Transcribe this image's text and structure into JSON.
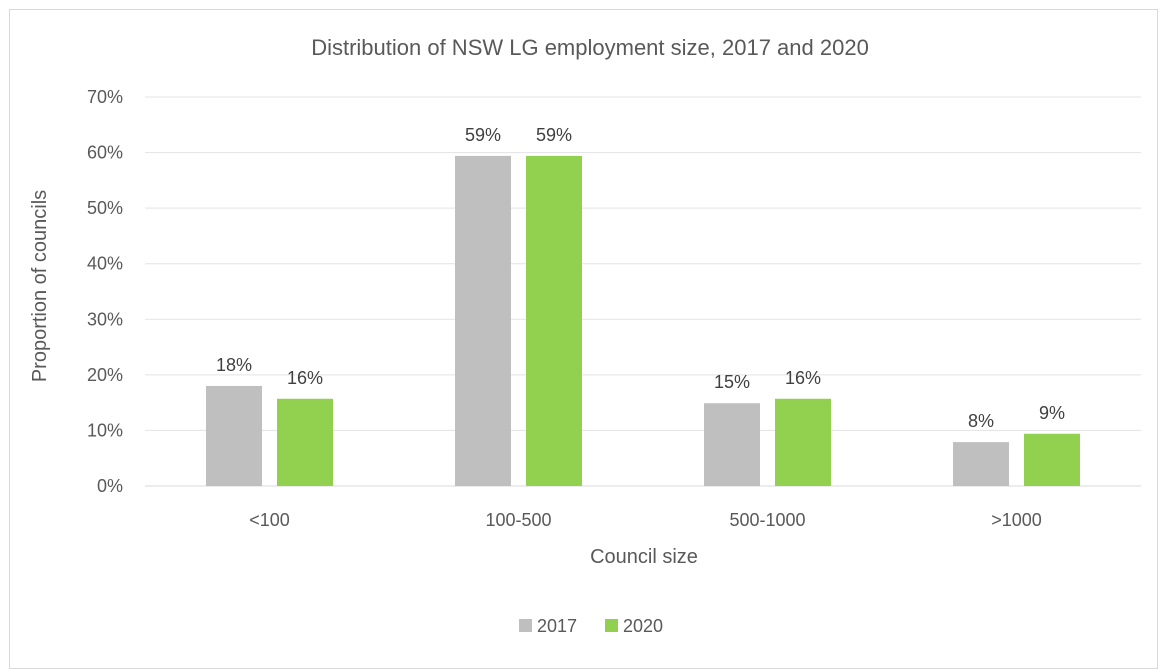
{
  "chart_data": {
    "type": "bar",
    "title": "Distribution of NSW LG employment size, 2017 and 2020",
    "xlabel": "Council size",
    "ylabel": "Proportion of councils",
    "categories": [
      "<100",
      "100-500",
      "500-1000",
      ">1000"
    ],
    "series": [
      {
        "name": "2017",
        "color": "#bfbfbf",
        "values": [
          18,
          59.4,
          14.9,
          7.9
        ],
        "labels": [
          "18%",
          "59%",
          "15%",
          "8%"
        ]
      },
      {
        "name": "2020",
        "color": "#92d050",
        "values": [
          15.7,
          59.4,
          15.7,
          9.4
        ],
        "labels": [
          "16%",
          "59%",
          "16%",
          "9%"
        ]
      }
    ],
    "ylim": [
      0,
      70
    ],
    "yticks": [
      "0%",
      "10%",
      "20%",
      "30%",
      "40%",
      "50%",
      "60%",
      "70%"
    ],
    "grid": true,
    "legend_position": "bottom"
  }
}
